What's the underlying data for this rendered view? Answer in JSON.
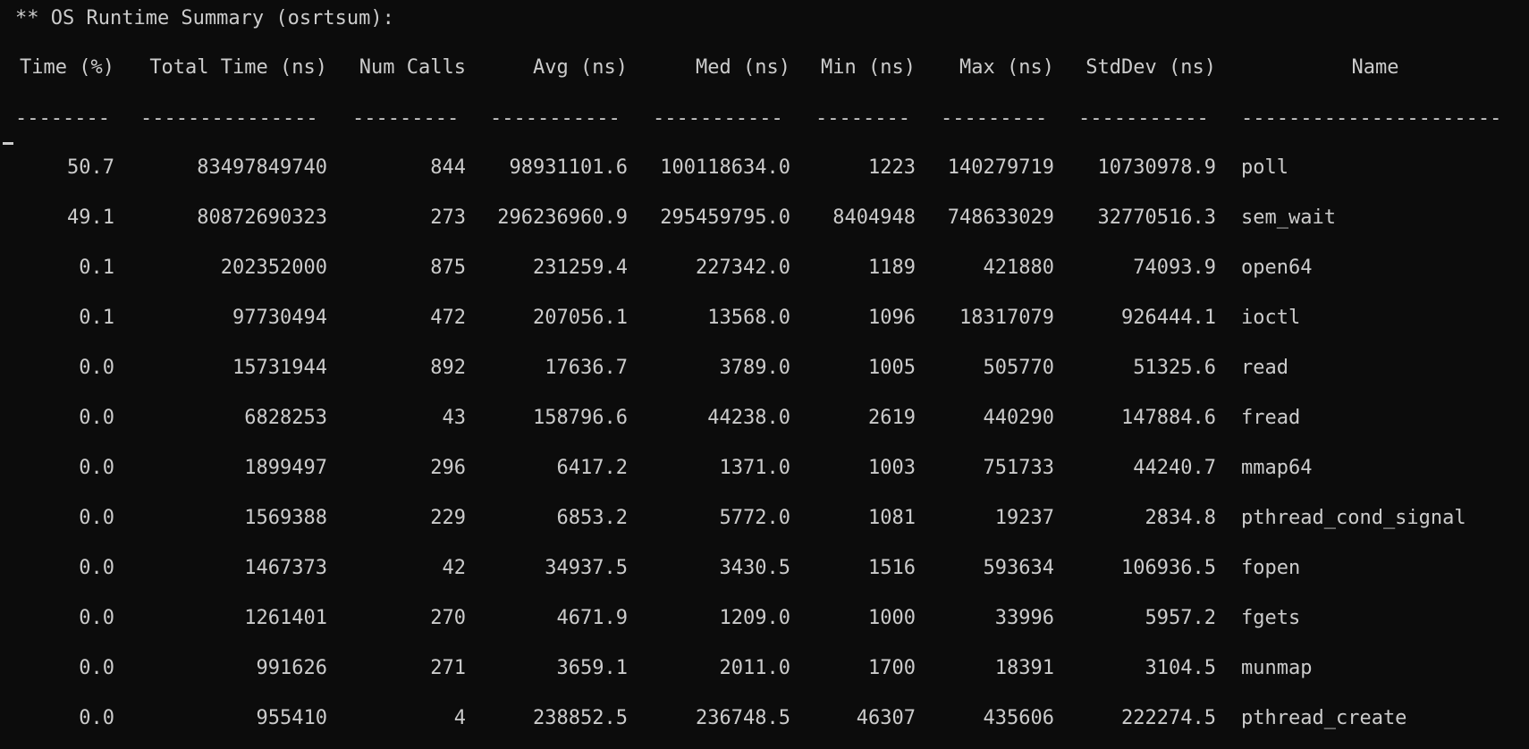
{
  "title": "** OS Runtime Summary (osrtsum):",
  "headers": {
    "time": "Time (%)",
    "total": "Total Time (ns)",
    "calls": "Num Calls",
    "avg": "Avg (ns)",
    "med": "Med (ns)",
    "min": "Min (ns)",
    "max": "Max (ns)",
    "std": "StdDev (ns)",
    "name": "Name"
  },
  "separators": {
    "time": "--------",
    "total": "---------------",
    "calls": "---------",
    "avg": "-----------",
    "med": "-----------",
    "min": "--------",
    "max": "---------",
    "std": "-----------",
    "name": "----------------------"
  },
  "rows": [
    {
      "time": "50.7",
      "total": "83497849740",
      "calls": "844",
      "avg": "98931101.6",
      "med": "100118634.0",
      "min": "1223",
      "max": "140279719",
      "std": "10730978.9",
      "name": "poll"
    },
    {
      "time": "49.1",
      "total": "80872690323",
      "calls": "273",
      "avg": "296236960.9",
      "med": "295459795.0",
      "min": "8404948",
      "max": "748633029",
      "std": "32770516.3",
      "name": "sem_wait"
    },
    {
      "time": "0.1",
      "total": "202352000",
      "calls": "875",
      "avg": "231259.4",
      "med": "227342.0",
      "min": "1189",
      "max": "421880",
      "std": "74093.9",
      "name": "open64"
    },
    {
      "time": "0.1",
      "total": "97730494",
      "calls": "472",
      "avg": "207056.1",
      "med": "13568.0",
      "min": "1096",
      "max": "18317079",
      "std": "926444.1",
      "name": "ioctl"
    },
    {
      "time": "0.0",
      "total": "15731944",
      "calls": "892",
      "avg": "17636.7",
      "med": "3789.0",
      "min": "1005",
      "max": "505770",
      "std": "51325.6",
      "name": "read"
    },
    {
      "time": "0.0",
      "total": "6828253",
      "calls": "43",
      "avg": "158796.6",
      "med": "44238.0",
      "min": "2619",
      "max": "440290",
      "std": "147884.6",
      "name": "fread"
    },
    {
      "time": "0.0",
      "total": "1899497",
      "calls": "296",
      "avg": "6417.2",
      "med": "1371.0",
      "min": "1003",
      "max": "751733",
      "std": "44240.7",
      "name": "mmap64"
    },
    {
      "time": "0.0",
      "total": "1569388",
      "calls": "229",
      "avg": "6853.2",
      "med": "5772.0",
      "min": "1081",
      "max": "19237",
      "std": "2834.8",
      "name": "pthread_cond_signal"
    },
    {
      "time": "0.0",
      "total": "1467373",
      "calls": "42",
      "avg": "34937.5",
      "med": "3430.5",
      "min": "1516",
      "max": "593634",
      "std": "106936.5",
      "name": "fopen"
    },
    {
      "time": "0.0",
      "total": "1261401",
      "calls": "270",
      "avg": "4671.9",
      "med": "1209.0",
      "min": "1000",
      "max": "33996",
      "std": "5957.2",
      "name": "fgets"
    },
    {
      "time": "0.0",
      "total": "991626",
      "calls": "271",
      "avg": "3659.1",
      "med": "2011.0",
      "min": "1700",
      "max": "18391",
      "std": "3104.5",
      "name": "munmap"
    },
    {
      "time": "0.0",
      "total": "955410",
      "calls": "4",
      "avg": "238852.5",
      "med": "236748.5",
      "min": "46307",
      "max": "435606",
      "std": "222274.5",
      "name": "pthread_create"
    }
  ]
}
